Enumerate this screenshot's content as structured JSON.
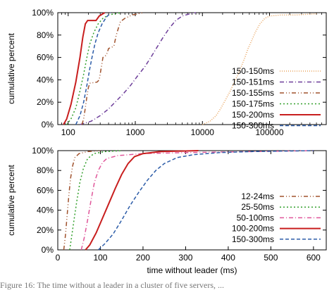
{
  "chart_data": [
    {
      "type": "line",
      "xscale": "log",
      "xlim": [
        70,
        700000
      ],
      "ylim": [
        0,
        100
      ],
      "xticks": [
        100,
        1000,
        10000,
        100000
      ],
      "xtick_labels": [
        "100",
        "1000",
        "10000",
        "100000"
      ],
      "yticks": [
        0,
        20,
        40,
        60,
        80,
        100
      ],
      "ytick_labels": [
        "0%",
        "20%",
        "40%",
        "60%",
        "80%",
        "100%"
      ],
      "xlabel": "",
      "ylabel": "cumulative percent",
      "legend_position": "bottom-right",
      "series": [
        {
          "name": "150-150ms",
          "color": "#e8a25a",
          "dash": "1,2",
          "points": [
            [
              10000,
              0
            ],
            [
              13000,
              3
            ],
            [
              16000,
              8
            ],
            [
              19000,
              15
            ],
            [
              22000,
              22
            ],
            [
              26000,
              30
            ],
            [
              30000,
              38
            ],
            [
              34000,
              45
            ],
            [
              38000,
              52
            ],
            [
              43000,
              60
            ],
            [
              48000,
              68
            ],
            [
              55000,
              76
            ],
            [
              62000,
              83
            ],
            [
              72000,
              90
            ],
            [
              85000,
              95
            ],
            [
              100000,
              97
            ],
            [
              150000,
              98
            ],
            [
              250000,
              98
            ],
            [
              500000,
              99
            ]
          ]
        },
        {
          "name": "150-151ms",
          "color": "#6e3f9a",
          "dash": "6,3,1,3",
          "points": [
            [
              150,
              0
            ],
            [
              220,
              3
            ],
            [
              300,
              8
            ],
            [
              400,
              14
            ],
            [
              500,
              20
            ],
            [
              650,
              27
            ],
            [
              850,
              35
            ],
            [
              1100,
              44
            ],
            [
              1400,
              52
            ],
            [
              1700,
              60
            ],
            [
              2100,
              69
            ],
            [
              2600,
              78
            ],
            [
              3200,
              86
            ],
            [
              4000,
              93
            ],
            [
              5000,
              97
            ],
            [
              6500,
              99
            ],
            [
              8000,
              100
            ]
          ]
        },
        {
          "name": "150-155ms",
          "color": "#a0522d",
          "dash": "6,3,1,3,1,3",
          "points": [
            [
              160,
              0
            ],
            [
              170,
              5
            ],
            [
              180,
              15
            ],
            [
              190,
              25
            ],
            [
              200,
              33
            ],
            [
              210,
              37
            ],
            [
              270,
              38
            ],
            [
              290,
              40
            ],
            [
              330,
              60
            ],
            [
              370,
              62
            ],
            [
              400,
              68
            ],
            [
              480,
              70
            ],
            [
              520,
              80
            ],
            [
              600,
              92
            ],
            [
              700,
              95
            ],
            [
              900,
              98
            ],
            [
              1100,
              99
            ],
            [
              1300,
              100
            ]
          ]
        },
        {
          "name": "150-175ms",
          "color": "#33a02c",
          "dash": "2,3",
          "points": [
            [
              95,
              0
            ],
            [
              110,
              5
            ],
            [
              130,
              15
            ],
            [
              150,
              30
            ],
            [
              170,
              45
            ],
            [
              190,
              60
            ],
            [
              210,
              72
            ],
            [
              240,
              82
            ],
            [
              280,
              90
            ],
            [
              330,
              95
            ],
            [
              400,
              98
            ],
            [
              500,
              99
            ],
            [
              600,
              100
            ]
          ]
        },
        {
          "name": "150-200ms",
          "color": "#c81e1e",
          "dash": "",
          "points": [
            [
              85,
              0
            ],
            [
              95,
              5
            ],
            [
              110,
              18
            ],
            [
              130,
              38
            ],
            [
              150,
              60
            ],
            [
              165,
              78
            ],
            [
              180,
              90
            ],
            [
              195,
              93
            ],
            [
              260,
              93
            ],
            [
              290,
              97
            ],
            [
              350,
              100
            ]
          ]
        },
        {
          "name": "150-300ms",
          "color": "#2c5ca8",
          "dash": "5,3",
          "points": [
            [
              130,
              0
            ],
            [
              150,
              8
            ],
            [
              170,
              20
            ],
            [
              190,
              35
            ],
            [
              210,
              50
            ],
            [
              230,
              62
            ],
            [
              250,
              72
            ],
            [
              280,
              82
            ],
            [
              320,
              90
            ],
            [
              370,
              96
            ],
            [
              430,
              100
            ]
          ]
        }
      ]
    },
    {
      "type": "line",
      "xlim": [
        0,
        630
      ],
      "ylim": [
        0,
        100
      ],
      "xticks": [
        0,
        100,
        200,
        300,
        400,
        500,
        600
      ],
      "xtick_labels": [
        "0",
        "100",
        "200",
        "300",
        "400",
        "500",
        "600"
      ],
      "yticks": [
        0,
        20,
        40,
        60,
        80,
        100
      ],
      "ytick_labels": [
        "0%",
        "20%",
        "40%",
        "60%",
        "80%",
        "100%"
      ],
      "xlabel": "time without leader (ms)",
      "ylabel": "cumulative percent",
      "legend_position": "bottom-right",
      "series": [
        {
          "name": "12-24ms",
          "color": "#a0522d",
          "dash": "6,3,1,3,1,3",
          "points": [
            [
              14,
              0
            ],
            [
              18,
              15
            ],
            [
              22,
              35
            ],
            [
              26,
              55
            ],
            [
              30,
              72
            ],
            [
              35,
              85
            ],
            [
              40,
              93
            ],
            [
              50,
              97
            ],
            [
              70,
              99
            ],
            [
              100,
              100
            ]
          ]
        },
        {
          "name": "25-50ms",
          "color": "#33a02c",
          "dash": "2,3",
          "points": [
            [
              28,
              0
            ],
            [
              32,
              12
            ],
            [
              38,
              30
            ],
            [
              45,
              50
            ],
            [
              52,
              68
            ],
            [
              60,
              82
            ],
            [
              70,
              92
            ],
            [
              85,
              97
            ],
            [
              110,
              99
            ],
            [
              150,
              100
            ]
          ]
        },
        {
          "name": "50-100ms",
          "color": "#e0569a",
          "dash": "6,3,1,3",
          "points": [
            [
              55,
              0
            ],
            [
              62,
              12
            ],
            [
              70,
              30
            ],
            [
              78,
              50
            ],
            [
              86,
              68
            ],
            [
              95,
              80
            ],
            [
              105,
              88
            ],
            [
              115,
              92
            ],
            [
              140,
              95
            ],
            [
              200,
              97
            ],
            [
              300,
              98
            ],
            [
              450,
              99
            ],
            [
              600,
              100
            ]
          ]
        },
        {
          "name": "100-200ms",
          "color": "#c81e1e",
          "dash": "",
          "points": [
            [
              65,
              0
            ],
            [
              75,
              5
            ],
            [
              90,
              17
            ],
            [
              105,
              32
            ],
            [
              120,
              47
            ],
            [
              135,
              62
            ],
            [
              150,
              76
            ],
            [
              165,
              87
            ],
            [
              180,
              94
            ],
            [
              200,
              97
            ],
            [
              240,
              99
            ],
            [
              330,
              100
            ]
          ]
        },
        {
          "name": "150-300ms",
          "color": "#2c5ca8",
          "dash": "5,3",
          "points": [
            [
              95,
              0
            ],
            [
              110,
              6
            ],
            [
              130,
              16
            ],
            [
              150,
              30
            ],
            [
              170,
              45
            ],
            [
              190,
              58
            ],
            [
              210,
              70
            ],
            [
              230,
              80
            ],
            [
              250,
              87
            ],
            [
              280,
              93
            ],
            [
              320,
              96
            ],
            [
              380,
              98
            ],
            [
              450,
              99
            ],
            [
              600,
              100
            ]
          ]
        }
      ]
    }
  ],
  "caption": "Figure 16: The time without a leader in a cluster of  five servers, ..."
}
